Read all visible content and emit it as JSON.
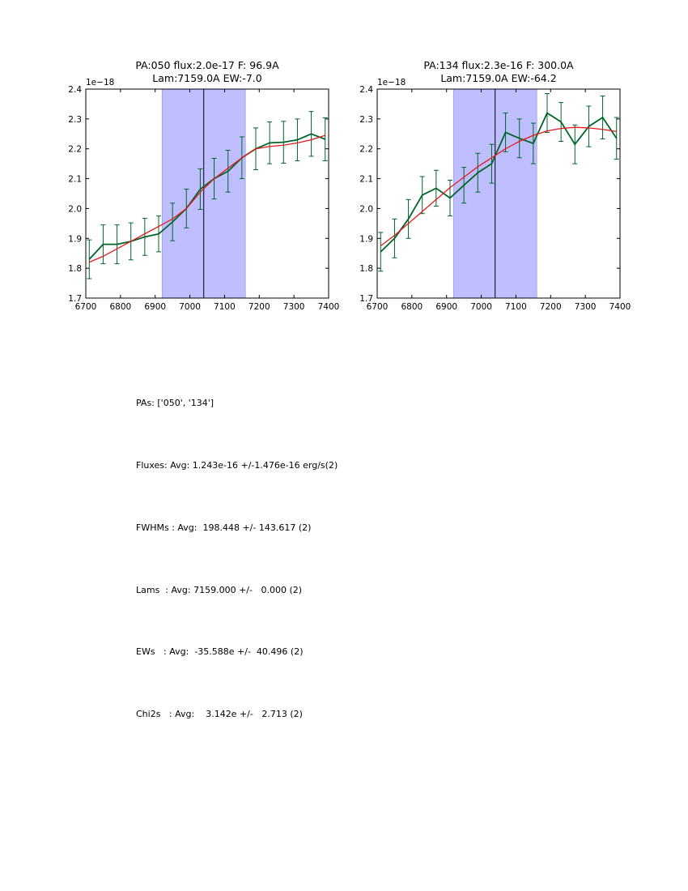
{
  "colors": {
    "data_line": "#006428",
    "fit_line": "#e41a1c",
    "band_fill": "#bfbfff",
    "band_edge": "#9a9ad8",
    "axis": "#000000"
  },
  "chart_data": [
    {
      "type": "line",
      "title_line1": "PA:050 flux:2.0e-17 F: 96.9A",
      "title_line2": "Lam:7159.0A EW:-7.0",
      "offset_label": "1e−18",
      "xlim": [
        6700,
        7400
      ],
      "ylim": [
        1.7,
        2.4
      ],
      "xticks": [
        "6700",
        "6800",
        "6900",
        "7000",
        "7100",
        "7200",
        "7300",
        "7400"
      ],
      "yticks": [
        "1.7",
        "1.8",
        "1.9",
        "2.0",
        "2.1",
        "2.2",
        "2.3",
        "2.4"
      ],
      "band": [
        6920,
        7160
      ],
      "center_line": 7040,
      "series": [
        {
          "role": "data",
          "x": [
            6710,
            6750,
            6790,
            6830,
            6870,
            6910,
            6950,
            6990,
            7030,
            7070,
            7110,
            7150,
            7190,
            7230,
            7270,
            7310,
            7350,
            7390
          ],
          "y": [
            1.83,
            1.88,
            1.88,
            1.89,
            1.905,
            1.915,
            1.955,
            2.0,
            2.065,
            2.1,
            2.125,
            2.17,
            2.2,
            2.22,
            2.222,
            2.23,
            2.25,
            2.232
          ],
          "err": [
            0.065,
            0.065,
            0.065,
            0.062,
            0.062,
            0.06,
            0.063,
            0.065,
            0.068,
            0.068,
            0.07,
            0.07,
            0.07,
            0.07,
            0.07,
            0.07,
            0.075,
            0.072
          ]
        },
        {
          "role": "fit",
          "x": [
            6710,
            6750,
            6790,
            6830,
            6870,
            6910,
            6950,
            6990,
            7030,
            7070,
            7110,
            7150,
            7190,
            7230,
            7270,
            7310,
            7350,
            7390
          ],
          "y": [
            1.82,
            1.84,
            1.865,
            1.89,
            1.915,
            1.94,
            1.965,
            2.0,
            2.055,
            2.1,
            2.135,
            2.17,
            2.2,
            2.208,
            2.212,
            2.22,
            2.23,
            2.245
          ]
        }
      ]
    },
    {
      "type": "line",
      "title_line1": "PA:134 flux:2.3e-16 F: 300.0A",
      "title_line2": "Lam:7159.0A EW:-64.2",
      "offset_label": "1e−18",
      "xlim": [
        6700,
        7400
      ],
      "ylim": [
        1.7,
        2.4
      ],
      "xticks": [
        "6700",
        "6800",
        "6900",
        "7000",
        "7100",
        "7200",
        "7300",
        "7400"
      ],
      "yticks": [
        "1.7",
        "1.8",
        "1.9",
        "2.0",
        "2.1",
        "2.2",
        "2.3",
        "2.4"
      ],
      "band": [
        6920,
        7160
      ],
      "center_line": 7040,
      "series": [
        {
          "role": "data",
          "x": [
            6710,
            6750,
            6790,
            6830,
            6870,
            6910,
            6950,
            6990,
            7030,
            7070,
            7110,
            7150,
            7190,
            7230,
            7270,
            7310,
            7350,
            7390
          ],
          "y": [
            1.855,
            1.9,
            1.965,
            2.045,
            2.068,
            2.035,
            2.078,
            2.12,
            2.15,
            2.255,
            2.235,
            2.218,
            2.32,
            2.29,
            2.215,
            2.275,
            2.305,
            2.235
          ],
          "err": [
            0.065,
            0.065,
            0.065,
            0.062,
            0.06,
            0.06,
            0.06,
            0.065,
            0.065,
            0.065,
            0.065,
            0.068,
            0.065,
            0.065,
            0.065,
            0.068,
            0.072,
            0.07
          ]
        },
        {
          "role": "fit",
          "x": [
            6710,
            6750,
            6790,
            6830,
            6870,
            6910,
            6950,
            6990,
            7030,
            7070,
            7110,
            7150,
            7190,
            7230,
            7270,
            7310,
            7350,
            7390
          ],
          "y": [
            1.875,
            1.91,
            1.95,
            1.99,
            2.03,
            2.07,
            2.105,
            2.14,
            2.17,
            2.2,
            2.225,
            2.245,
            2.26,
            2.268,
            2.272,
            2.27,
            2.265,
            2.258
          ]
        }
      ]
    }
  ],
  "stats": [
    "PAs: ['050', '134']",
    "Fluxes: Avg: 1.243e-16 +/-1.476e-16 erg/s(2)",
    "FWHMs : Avg:  198.448 +/- 143.617 (2)",
    "Lams  : Avg: 7159.000 +/-   0.000 (2)",
    "EWs   : Avg:  -35.588e +/-  40.496 (2)",
    "Chi2s   : Avg:    3.142e +/-   2.713 (2)"
  ]
}
